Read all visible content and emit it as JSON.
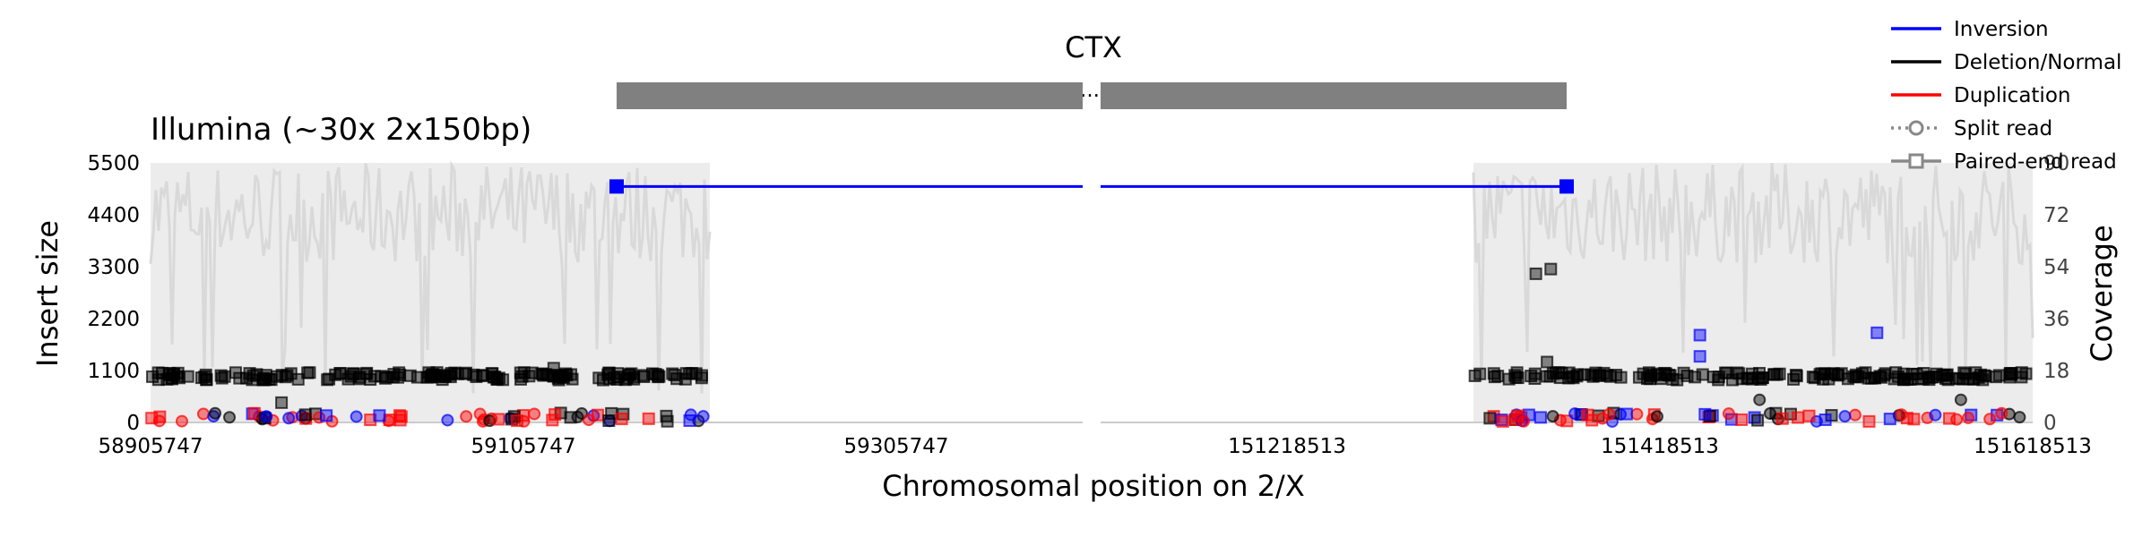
{
  "chart_data": {
    "type": "scatter",
    "title": "CTX",
    "subtitle": "Illumina (~30x 2x150bp)",
    "xlabel": "Chromosomal position on 2/X",
    "ylabel_left": "Insert size",
    "ylabel_right": "Coverage",
    "ylim_left": [
      0,
      5500
    ],
    "ylim_right": [
      0,
      90
    ],
    "yticks_left": [
      "0",
      "1100",
      "2200",
      "3300",
      "4400",
      "5500"
    ],
    "yticks_right": [
      "0",
      "18",
      "36",
      "54",
      "72",
      "90"
    ],
    "xtick_labels": [
      "58905747",
      "59105747",
      "59305747",
      "151218513",
      "151418513",
      "151618513"
    ],
    "break_marker": "...",
    "segments": [
      {
        "chrom": "2",
        "xlim": [
          58905747,
          59405747
        ],
        "xticks": [
          58905747,
          59105747,
          59305747
        ],
        "coverage_extent": [
          58905747,
          59205747
        ],
        "sv_bar": [
          59155747,
          59405747
        ]
      },
      {
        "chrom": "X",
        "xlim": [
          151118513,
          151618513
        ],
        "xticks": [
          151218513,
          151418513,
          151618513
        ],
        "coverage_extent": [
          151318513,
          151618513
        ],
        "sv_bar": [
          151118513,
          151368513
        ]
      }
    ],
    "breakpoints": [
      {
        "segment": 0,
        "x": 59155747,
        "y": 5000
      },
      {
        "segment": 1,
        "x": 151368513,
        "y": 5000
      }
    ],
    "highlight_points": [
      {
        "segment": 1,
        "x": 151352000,
        "y": 3150,
        "type": "Deletion/Normal",
        "shape": "square"
      },
      {
        "segment": 1,
        "x": 151360000,
        "y": 3250,
        "type": "Deletion/Normal",
        "shape": "square"
      },
      {
        "segment": 1,
        "x": 151440000,
        "y": 1850,
        "type": "Inversion",
        "shape": "square"
      },
      {
        "segment": 1,
        "x": 151440000,
        "y": 1400,
        "type": "Inversion",
        "shape": "square"
      },
      {
        "segment": 1,
        "x": 151535000,
        "y": 1900,
        "type": "Inversion",
        "shape": "square"
      },
      {
        "segment": 1,
        "x": 151358000,
        "y": 1280,
        "type": "Deletion/Normal",
        "shape": "square"
      },
      {
        "segment": 0,
        "x": 59122000,
        "y": 1150,
        "type": "Deletion/Normal",
        "shape": "square"
      },
      {
        "segment": 0,
        "x": 58976000,
        "y": 420,
        "type": "Deletion/Normal",
        "shape": "square"
      },
      {
        "segment": 1,
        "x": 151472000,
        "y": 480,
        "type": "Deletion/Normal",
        "shape": "circle"
      },
      {
        "segment": 1,
        "x": 151580000,
        "y": 480,
        "type": "Deletion/Normal",
        "shape": "circle"
      }
    ],
    "legend": {
      "placement": "top-right",
      "entries": [
        {
          "label": "Inversion",
          "color": "#0000ff",
          "style": "line"
        },
        {
          "label": "Deletion/Normal",
          "color": "#000000",
          "style": "line"
        },
        {
          "label": "Duplication",
          "color": "#ff0000",
          "style": "line"
        },
        {
          "label": "Split read",
          "color": "#888888",
          "style": "dotted-circle"
        },
        {
          "label": "Paired-end read",
          "color": "#888888",
          "style": "solid-square"
        }
      ]
    },
    "colors": {
      "inversion": "#0000ff",
      "deletion": "#000000",
      "duplication": "#ff0000",
      "coverage": "#d9d9d9",
      "sv_bar": "#808080"
    },
    "grid": false
  }
}
